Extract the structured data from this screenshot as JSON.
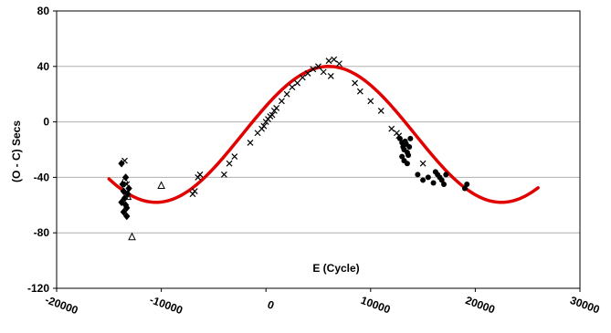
{
  "colors": {
    "fit": "#e00000",
    "points": "#000000",
    "grid": "#b0b0b0",
    "axis": "#000000"
  },
  "chart_data": {
    "type": "scatter",
    "title": "",
    "xlabel": "E (Cycle)",
    "ylabel": "(O - C) Secs",
    "xlim": [
      -20000,
      30000
    ],
    "ylim": [
      -120,
      80
    ],
    "x_ticks": [
      -20000,
      -10000,
      0,
      10000,
      20000,
      30000
    ],
    "x_tick_labels": [
      "-20000",
      "-10000",
      "0",
      "10000",
      "20000",
      "30000"
    ],
    "y_ticks": [
      -120,
      -80,
      -40,
      0,
      40,
      80
    ],
    "y_tick_labels": [
      "-120",
      "-80",
      "-40",
      "0",
      "40",
      "80"
    ],
    "grid": "horizontal",
    "legend": "none",
    "series": [
      {
        "marker": "triangle",
        "x": [
          -13500,
          -13200,
          -12800,
          -10000
        ],
        "y": [
          -42,
          -54,
          -83,
          -46
        ]
      },
      {
        "marker": "diamond",
        "x": [
          -13800,
          -13700,
          -13600,
          -13500,
          -13400,
          -13300,
          -13200,
          -13100,
          -13600,
          -13400,
          -13800,
          -13300
        ],
        "y": [
          -30,
          -45,
          -50,
          -55,
          -60,
          -62,
          -52,
          -48,
          -65,
          -40,
          -58,
          -68
        ]
      },
      {
        "marker": "x",
        "x": [
          -13500,
          -13300,
          -7000,
          -6800,
          -6500,
          -6300,
          -4000,
          -3500,
          -3000,
          -1500,
          -800,
          -400,
          -200,
          0,
          200,
          400,
          600,
          800,
          1000,
          1500,
          2000,
          2500,
          3000,
          3500,
          4000,
          4500,
          5000,
          5500,
          6000,
          6200,
          6500,
          7000,
          8500,
          9000,
          10000,
          11000,
          12000,
          12500,
          12700,
          15000
        ],
        "y": [
          -28,
          -45,
          -52,
          -50,
          -40,
          -38,
          -38,
          -30,
          -25,
          -15,
          -8,
          -5,
          -3,
          0,
          2,
          4,
          5,
          8,
          10,
          15,
          20,
          25,
          28,
          32,
          35,
          38,
          40,
          36,
          44,
          33,
          45,
          42,
          28,
          22,
          15,
          8,
          -5,
          -8,
          -10,
          -30
        ]
      },
      {
        "marker": "circle",
        "x": [
          12800,
          13000,
          13100,
          13200,
          13300,
          13400,
          13500,
          13600,
          13700,
          13800,
          13000,
          13200,
          13500,
          14500,
          15000,
          15500,
          16000,
          16200,
          16400,
          16600,
          16800,
          17000,
          17200,
          19000,
          19200
        ],
        "y": [
          -12,
          -15,
          -18,
          -20,
          -14,
          -16,
          -22,
          -24,
          -18,
          -12,
          -25,
          -28,
          -30,
          -38,
          -42,
          -40,
          -44,
          -36,
          -38,
          -40,
          -42,
          -45,
          -38,
          -48,
          -45
        ]
      }
    ],
    "fit_curve": {
      "type": "sinusoid",
      "mean": -9,
      "amplitude": 49,
      "period": 33000,
      "peak_at": 6000,
      "x_range": [
        -15000,
        26000
      ]
    }
  }
}
